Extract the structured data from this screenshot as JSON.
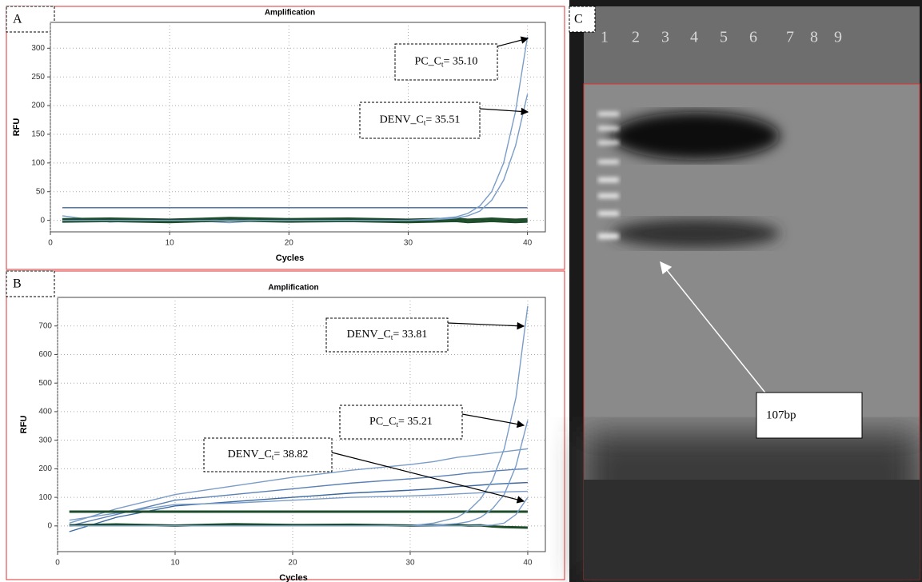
{
  "chart_data": [
    {
      "type": "line",
      "panel_label": "A",
      "title": "Amplification",
      "xlabel": "Cycles",
      "ylabel": "RFU",
      "xlim": [
        0,
        41.5
      ],
      "ylim": [
        -20,
        345
      ],
      "xticks": [
        0,
        10,
        20,
        30,
        40
      ],
      "yticks": [
        0,
        50,
        100,
        150,
        200,
        250,
        300
      ],
      "grid": true,
      "x": [
        1,
        5,
        10,
        15,
        20,
        25,
        30,
        32,
        34,
        35,
        36,
        37,
        38,
        39,
        40
      ],
      "series": [
        {
          "color": "#7a9cc8",
          "values": [
            8,
            -3,
            2,
            -4,
            3,
            1,
            -2,
            0,
            2,
            -3,
            1,
            2,
            -2,
            1,
            -1
          ]
        },
        {
          "color": "#1e4d2b",
          "values": [
            2,
            3,
            1,
            4,
            2,
            3,
            1,
            2,
            3,
            1,
            2,
            3,
            2,
            1,
            2
          ]
        },
        {
          "color": "#1e4d2b",
          "values": [
            -2,
            -1,
            -3,
            0,
            -2,
            -1,
            -3,
            -2,
            -1,
            -3,
            -2,
            -1,
            -2,
            -3,
            -2
          ]
        },
        {
          "color": "#3a68a0",
          "values": [
            22,
            22,
            22,
            22,
            22,
            22,
            22,
            22,
            22,
            22,
            22,
            22,
            22,
            22,
            22
          ]
        },
        {
          "color": "#7a9cc8",
          "values": [
            0,
            0,
            0,
            0,
            0,
            0,
            0,
            2,
            6,
            12,
            25,
            50,
            100,
            190,
            320
          ]
        },
        {
          "color": "#7a9cc8",
          "values": [
            0,
            0,
            0,
            0,
            0,
            0,
            0,
            1,
            4,
            8,
            16,
            35,
            70,
            130,
            220
          ]
        }
      ],
      "annotations": [
        {
          "text": "PC_C",
          "sub": "t",
          "rest": "= 35.10"
        },
        {
          "text": "DENV_C",
          "sub": "t",
          "rest": "= 35.51"
        }
      ]
    },
    {
      "type": "line",
      "panel_label": "B",
      "title": "Amplification",
      "xlabel": "Cycles",
      "ylabel": "RFU",
      "xlim": [
        0,
        41.5
      ],
      "ylim": [
        -90,
        800
      ],
      "xticks": [
        0,
        10,
        20,
        30,
        40
      ],
      "yticks": [
        0,
        100,
        200,
        300,
        400,
        500,
        600,
        700
      ],
      "grid": true,
      "x": [
        1,
        5,
        10,
        15,
        20,
        25,
        30,
        32,
        34,
        35,
        36,
        37,
        38,
        39,
        40
      ],
      "series": [
        {
          "color": "#7a9cc8",
          "values": [
            10,
            60,
            110,
            140,
            170,
            195,
            215,
            225,
            240,
            245,
            250,
            255,
            260,
            265,
            270
          ]
        },
        {
          "color": "#5a80b4",
          "values": [
            0,
            40,
            90,
            110,
            130,
            150,
            165,
            172,
            180,
            185,
            188,
            192,
            195,
            198,
            200
          ]
        },
        {
          "color": "#3a68a0",
          "values": [
            -20,
            30,
            70,
            85,
            100,
            115,
            125,
            130,
            138,
            140,
            143,
            146,
            148,
            150,
            152
          ]
        },
        {
          "color": "#7a9cc8",
          "values": [
            20,
            45,
            75,
            80,
            90,
            100,
            105,
            108,
            112,
            114,
            116,
            118,
            119,
            120,
            121
          ]
        },
        {
          "color": "#1e4d2b",
          "values": [
            50,
            50,
            50,
            50,
            50,
            50,
            50,
            50,
            50,
            50,
            50,
            50,
            50,
            50,
            50
          ]
        },
        {
          "color": "#1e4d2b",
          "values": [
            2,
            5,
            1,
            6,
            3,
            4,
            1,
            2,
            3,
            1,
            2,
            -2,
            -4,
            -5,
            -6
          ]
        },
        {
          "color": "#7a9cc8",
          "values": [
            0,
            0,
            0,
            0,
            0,
            0,
            0,
            10,
            30,
            55,
            95,
            160,
            270,
            450,
            770
          ]
        },
        {
          "color": "#7a9cc8",
          "values": [
            0,
            0,
            0,
            0,
            0,
            0,
            0,
            2,
            8,
            15,
            30,
            60,
            110,
            210,
            370
          ]
        },
        {
          "color": "#7a9cc8",
          "values": [
            0,
            0,
            0,
            0,
            0,
            0,
            0,
            0,
            0,
            0,
            1,
            3,
            10,
            40,
            100
          ]
        }
      ],
      "annotations": [
        {
          "text": "DENV_C",
          "sub": "t",
          "rest": "= 33.81"
        },
        {
          "text": "PC_C",
          "sub": "t",
          "rest": "= 35.21"
        },
        {
          "text": "DENV_C",
          "sub": "t",
          "rest": "= 38.82"
        }
      ]
    }
  ],
  "gel": {
    "panel_label": "C",
    "lanes": [
      "1",
      "2",
      "3",
      "4",
      "5",
      "6",
      "7",
      "8",
      "9"
    ],
    "band_label": "107bp"
  }
}
